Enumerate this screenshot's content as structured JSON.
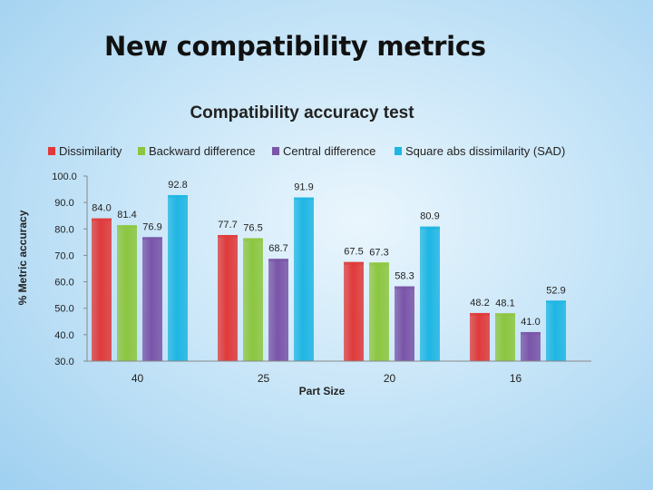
{
  "slide": {
    "title": "New compatibility metrics"
  },
  "chart_data": {
    "type": "bar",
    "title": "Compatibility accuracy test",
    "xlabel": "Part Size",
    "ylabel": "% Metric accuracy",
    "categories": [
      "40",
      "25",
      "20",
      "16"
    ],
    "series": [
      {
        "name": "Dissimilarity",
        "color": "#e03a3a",
        "values": [
          84.0,
          77.7,
          67.5,
          48.2
        ]
      },
      {
        "name": "Backward difference",
        "color": "#8cc63f",
        "values": [
          81.4,
          76.5,
          67.3,
          48.1
        ]
      },
      {
        "name": "Central difference",
        "color": "#7a55a8",
        "values": [
          76.9,
          68.7,
          58.3,
          41.0
        ]
      },
      {
        "name": "Square abs dissimilarity (SAD)",
        "color": "#1fb6e3",
        "values": [
          92.8,
          91.9,
          80.9,
          52.9
        ]
      }
    ],
    "ylim": [
      30.0,
      100.0
    ],
    "yticks": [
      "30.0",
      "40.0",
      "50.0",
      "60.0",
      "70.0",
      "80.0",
      "90.0",
      "100.0"
    ],
    "data_labels": [
      [
        "84.0",
        "77.7",
        "67.5",
        "48.2"
      ],
      [
        "81.4",
        "76.5",
        "67.3",
        "48.1"
      ],
      [
        "76.9",
        "68.7",
        "58.3",
        "41.0"
      ],
      [
        "92.8",
        "91.9",
        "80.9",
        "52.9"
      ]
    ],
    "grid": false,
    "legend": "top"
  }
}
